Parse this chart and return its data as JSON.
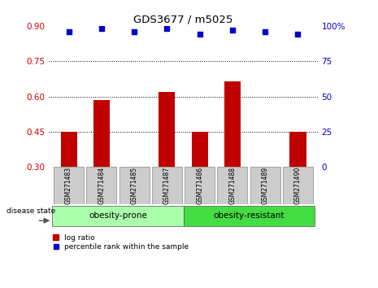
{
  "title": "GDS3677 / m5025",
  "samples": [
    "GSM271483",
    "GSM271484",
    "GSM271485",
    "GSM271487",
    "GSM271486",
    "GSM271488",
    "GSM271489",
    "GSM271490"
  ],
  "log_ratio": [
    0.45,
    0.585,
    0.3,
    0.62,
    0.45,
    0.665,
    0.3,
    0.45
  ],
  "percentile_rank": [
    96,
    98,
    96,
    98,
    94,
    97,
    96,
    94
  ],
  "bar_base": 0.3,
  "ylim_left": [
    0.3,
    0.9
  ],
  "ylim_right": [
    0,
    100
  ],
  "yticks_left": [
    0.3,
    0.45,
    0.6,
    0.75,
    0.9
  ],
  "yticks_right": [
    0,
    25,
    50,
    75,
    100
  ],
  "ytick_labels_right": [
    "0",
    "25",
    "50",
    "75",
    "100%"
  ],
  "grid_lines": [
    0.45,
    0.6,
    0.75
  ],
  "bar_color": "#C00000",
  "dot_color": "#0000CC",
  "group1_label": "obesity-prone",
  "group2_label": "obesity-resistant",
  "group1_color": "#AAFFAA",
  "group2_color": "#44DD44",
  "disease_state_label": "disease state",
  "legend_bar_label": "log ratio",
  "legend_dot_label": "percentile rank within the sample",
  "tick_label_color_left": "#CC0000",
  "tick_label_color_right": "#0000CC",
  "sample_box_color": "#CCCCCC"
}
